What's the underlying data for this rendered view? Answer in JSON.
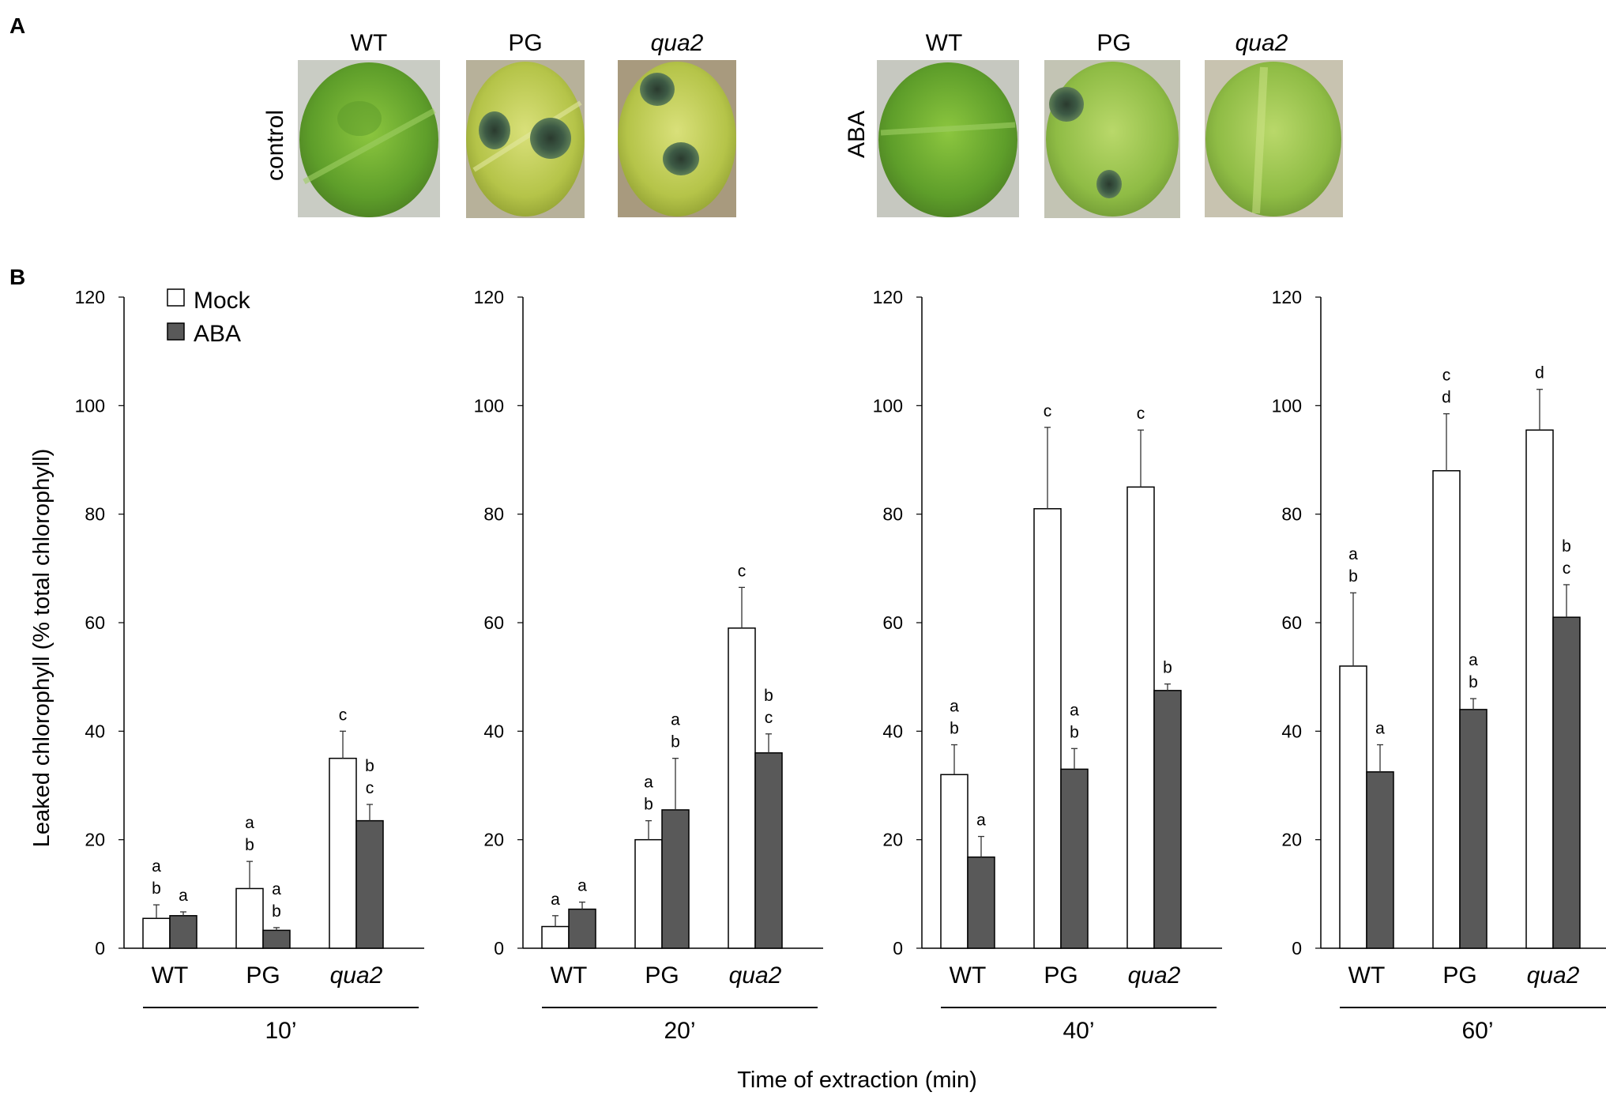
{
  "panel_a": {
    "letter": "A",
    "groups": [
      {
        "treatment": "control",
        "genotypes": [
          "WT",
          "PG",
          "qua2"
        ]
      },
      {
        "treatment": "ABA",
        "genotypes": [
          "WT",
          "PG",
          "qua2"
        ]
      }
    ]
  },
  "panel_b": {
    "letter": "B"
  },
  "colors": {
    "mock": "#ffffff",
    "aba": "#595959",
    "axis": "#000000"
  },
  "chart_data": [
    {
      "type": "bar",
      "time_label": "10’",
      "categories": [
        "WT",
        "PG",
        "qua2"
      ],
      "series": [
        {
          "name": "Mock",
          "values": [
            5.5,
            11,
            35
          ],
          "errors": [
            2.5,
            5,
            5
          ],
          "letters": [
            [
              "a",
              "b"
            ],
            [
              "a",
              "b"
            ],
            [
              "c"
            ]
          ]
        },
        {
          "name": "ABA",
          "values": [
            6,
            3.3,
            23.5
          ],
          "errors": [
            0.7,
            0.5,
            3
          ],
          "letters": [
            [
              "a"
            ],
            [
              "a",
              "b"
            ],
            [
              "b",
              "c"
            ]
          ]
        }
      ],
      "yticks": [
        "0",
        "20",
        "40",
        "60",
        "80",
        "100",
        "120"
      ],
      "ylim": [
        0,
        120
      ]
    },
    {
      "type": "bar",
      "time_label": "20’",
      "categories": [
        "WT",
        "PG",
        "qua2"
      ],
      "series": [
        {
          "name": "Mock",
          "values": [
            4,
            20,
            59
          ],
          "errors": [
            2,
            3.5,
            7.5
          ],
          "letters": [
            [
              "a"
            ],
            [
              "a",
              "b"
            ],
            [
              "c"
            ]
          ]
        },
        {
          "name": "ABA",
          "values": [
            7.2,
            25.5,
            36
          ],
          "errors": [
            1.3,
            9.5,
            3.5
          ],
          "letters": [
            [
              "a"
            ],
            [
              "a",
              "b"
            ],
            [
              "b",
              "c"
            ]
          ]
        }
      ],
      "yticks": [
        "0",
        "20",
        "40",
        "60",
        "80",
        "100",
        "120"
      ],
      "ylim": [
        0,
        120
      ]
    },
    {
      "type": "bar",
      "time_label": "40’",
      "categories": [
        "WT",
        "PG",
        "qua2"
      ],
      "series": [
        {
          "name": "Mock",
          "values": [
            32,
            81,
            85
          ],
          "errors": [
            5.5,
            15,
            10.5
          ],
          "letters": [
            [
              "a",
              "b"
            ],
            [
              "c"
            ],
            [
              "c"
            ]
          ]
        },
        {
          "name": "ABA",
          "values": [
            16.8,
            33,
            47.5
          ],
          "errors": [
            3.8,
            3.8,
            1.2
          ],
          "letters": [
            [
              "a"
            ],
            [
              "a",
              "b"
            ],
            [
              "b"
            ]
          ]
        }
      ],
      "yticks": [
        "0",
        "20",
        "40",
        "60",
        "80",
        "100",
        "120"
      ],
      "ylim": [
        0,
        120
      ]
    },
    {
      "type": "bar",
      "time_label": "60’",
      "categories": [
        "WT",
        "PG",
        "qua2"
      ],
      "series": [
        {
          "name": "Mock",
          "values": [
            52,
            88,
            95.5
          ],
          "errors": [
            13.5,
            10.5,
            7.5
          ],
          "letters": [
            [
              "a",
              "b"
            ],
            [
              "c",
              "d"
            ],
            [
              "d"
            ]
          ]
        },
        {
          "name": "ABA",
          "values": [
            32.5,
            44,
            61
          ],
          "errors": [
            5,
            2,
            6
          ],
          "letters": [
            [
              "a"
            ],
            [
              "a",
              "b"
            ],
            [
              "b",
              "c"
            ]
          ]
        }
      ],
      "yticks": [
        "0",
        "20",
        "40",
        "60",
        "80",
        "100",
        "120"
      ],
      "ylim": [
        0,
        120
      ]
    }
  ],
  "legend": {
    "mock_label": "Mock",
    "aba_label": "ABA"
  },
  "y_axis_title": "Leaked chlorophyll (% total chlorophyll)",
  "x_axis_title": "Time of extraction (min)"
}
